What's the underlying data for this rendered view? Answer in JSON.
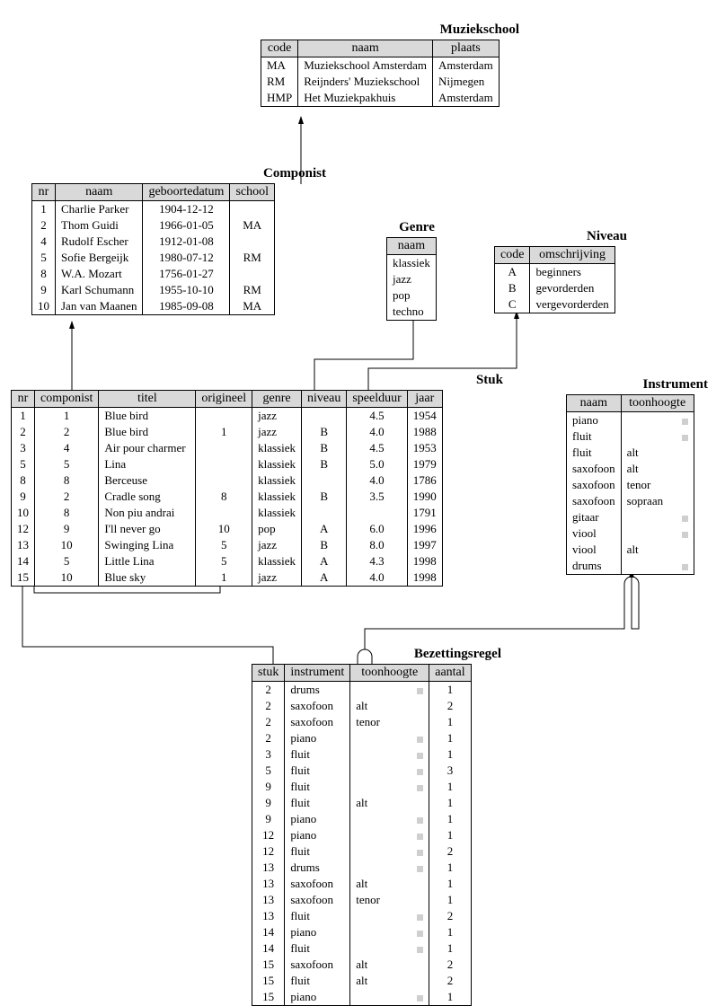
{
  "style": {
    "header_bg": "#d9d9d9",
    "border_color": "#000000",
    "null_marker_color": "#cfcfcf",
    "font_family": "Times New Roman",
    "title_fontsize": 15,
    "header_fontsize": 14,
    "body_fontsize": 13
  },
  "entities": {
    "muziekschool": {
      "title": "Muziekschool",
      "columns": [
        "code",
        "naam",
        "plaats"
      ],
      "rows": [
        [
          "MA",
          "Muziekschool Amsterdam",
          "Amsterdam"
        ],
        [
          "RM",
          "Reijnders' Muziekschool",
          "Nijmegen"
        ],
        [
          "HMP",
          "Het Muziekpakhuis",
          "Amsterdam"
        ]
      ]
    },
    "componist": {
      "title": "Componist",
      "columns": [
        "nr",
        "naam",
        "geboortedatum",
        "school"
      ],
      "rows": [
        [
          "1",
          "Charlie Parker",
          "1904-12-12",
          ""
        ],
        [
          "2",
          "Thom Guidi",
          "1966-01-05",
          "MA"
        ],
        [
          "4",
          "Rudolf Escher",
          "1912-01-08",
          ""
        ],
        [
          "5",
          "Sofie Bergeijk",
          "1980-07-12",
          "RM"
        ],
        [
          "8",
          "W.A. Mozart",
          "1756-01-27",
          ""
        ],
        [
          "9",
          "Karl Schumann",
          "1955-10-10",
          "RM"
        ],
        [
          "10",
          "Jan van Maanen",
          "1985-09-08",
          "MA"
        ]
      ]
    },
    "genre": {
      "title": "Genre",
      "columns": [
        "naam"
      ],
      "rows": [
        [
          "klassiek"
        ],
        [
          "jazz"
        ],
        [
          "pop"
        ],
        [
          "techno"
        ]
      ]
    },
    "niveau": {
      "title": "Niveau",
      "columns": [
        "code",
        "omschrijving"
      ],
      "rows": [
        [
          "A",
          "beginners"
        ],
        [
          "B",
          "gevorderden"
        ],
        [
          "C",
          "vergevorderden"
        ]
      ]
    },
    "stuk": {
      "title": "Stuk",
      "columns": [
        "nr",
        "componist",
        "titel",
        "origineel",
        "genre",
        "niveau",
        "speelduur",
        "jaar"
      ],
      "rows": [
        [
          "1",
          "1",
          "Blue bird",
          "",
          "jazz",
          "",
          "4.5",
          "1954"
        ],
        [
          "2",
          "2",
          "Blue bird",
          "1",
          "jazz",
          "B",
          "4.0",
          "1988"
        ],
        [
          "3",
          "4",
          "Air pour charmer",
          "",
          "klassiek",
          "B",
          "4.5",
          "1953"
        ],
        [
          "5",
          "5",
          "Lina",
          "",
          "klassiek",
          "B",
          "5.0",
          "1979"
        ],
        [
          "8",
          "8",
          "Berceuse",
          "",
          "klassiek",
          "",
          "4.0",
          "1786"
        ],
        [
          "9",
          "2",
          "Cradle song",
          "8",
          "klassiek",
          "B",
          "3.5",
          "1990"
        ],
        [
          "10",
          "8",
          "Non piu andrai",
          "",
          "klassiek",
          "",
          "",
          "1791"
        ],
        [
          "12",
          "9",
          "I'll never go",
          "10",
          "pop",
          "A",
          "6.0",
          "1996"
        ],
        [
          "13",
          "10",
          "Swinging Lina",
          "5",
          "jazz",
          "B",
          "8.0",
          "1997"
        ],
        [
          "14",
          "5",
          "Little Lina",
          "5",
          "klassiek",
          "A",
          "4.3",
          "1998"
        ],
        [
          "15",
          "10",
          "Blue sky",
          "1",
          "jazz",
          "A",
          "4.0",
          "1998"
        ]
      ]
    },
    "instrument": {
      "title": "Instrument",
      "columns": [
        "naam",
        "toonhoogte"
      ],
      "rows": [
        [
          "piano",
          null
        ],
        [
          "fluit",
          null
        ],
        [
          "fluit",
          "alt"
        ],
        [
          "saxofoon",
          "alt"
        ],
        [
          "saxofoon",
          "tenor"
        ],
        [
          "saxofoon",
          "sopraan"
        ],
        [
          "gitaar",
          null
        ],
        [
          "viool",
          null
        ],
        [
          "viool",
          "alt"
        ],
        [
          "drums",
          null
        ]
      ]
    },
    "bezettingsregel": {
      "title": "Bezettingsregel",
      "columns": [
        "stuk",
        "instrument",
        "toonhoogte",
        "aantal"
      ],
      "rows": [
        [
          "2",
          "drums",
          null,
          "1"
        ],
        [
          "2",
          "saxofoon",
          "alt",
          "2"
        ],
        [
          "2",
          "saxofoon",
          "tenor",
          "1"
        ],
        [
          "2",
          "piano",
          null,
          "1"
        ],
        [
          "3",
          "fluit",
          null,
          "1"
        ],
        [
          "5",
          "fluit",
          null,
          "3"
        ],
        [
          "9",
          "fluit",
          null,
          "1"
        ],
        [
          "9",
          "fluit",
          "alt",
          "1"
        ],
        [
          "9",
          "piano",
          null,
          "1"
        ],
        [
          "12",
          "piano",
          null,
          "1"
        ],
        [
          "12",
          "fluit",
          null,
          "2"
        ],
        [
          "13",
          "drums",
          null,
          "1"
        ],
        [
          "13",
          "saxofoon",
          "alt",
          "1"
        ],
        [
          "13",
          "saxofoon",
          "tenor",
          "1"
        ],
        [
          "13",
          "fluit",
          null,
          "2"
        ],
        [
          "14",
          "piano",
          null,
          "1"
        ],
        [
          "14",
          "fluit",
          null,
          "1"
        ],
        [
          "15",
          "saxofoon",
          "alt",
          "2"
        ],
        [
          "15",
          "fluit",
          "alt",
          "2"
        ],
        [
          "15",
          "piano",
          null,
          "1"
        ]
      ]
    }
  },
  "relationships": [
    {
      "from": "componist.school",
      "to": "muziekschool.code"
    },
    {
      "from": "stuk.componist",
      "to": "componist.nr"
    },
    {
      "from": "stuk.origineel",
      "to": "stuk.nr",
      "self": true
    },
    {
      "from": "stuk.genre",
      "to": "genre.naam"
    },
    {
      "from": "stuk.niveau",
      "to": "niveau.code"
    },
    {
      "from": "bezettingsregel.stuk",
      "to": "stuk.nr"
    },
    {
      "from": "bezettingsregel.instrument+toonhoogte",
      "to": "instrument.naam+toonhoogte"
    }
  ]
}
